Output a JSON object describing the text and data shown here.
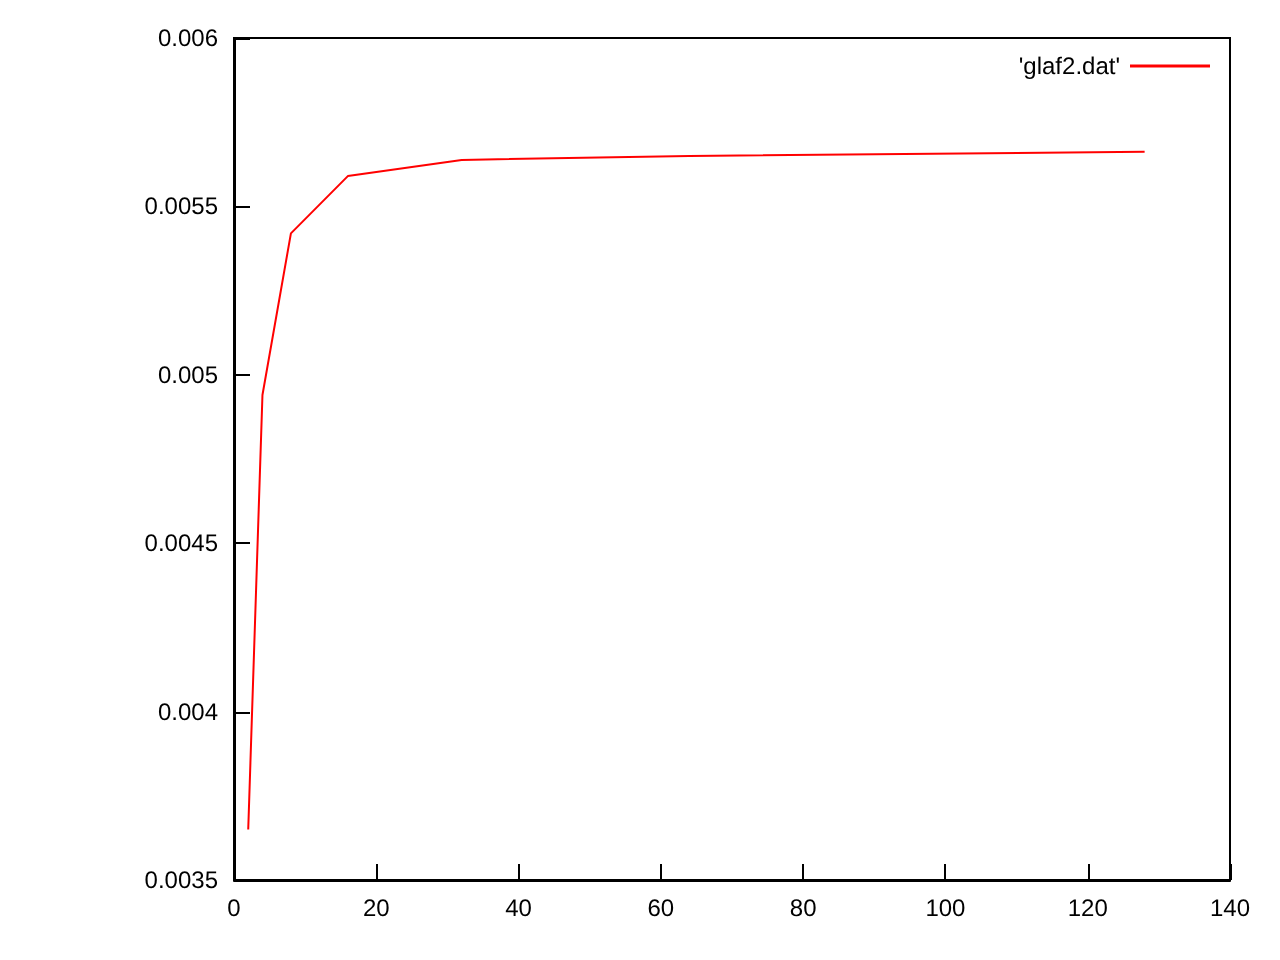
{
  "chart_data": {
    "type": "line",
    "x": [
      2,
      4,
      8,
      16,
      32,
      64,
      128
    ],
    "series": [
      {
        "name": "'glaf2.dat'",
        "color": "#ff0000",
        "values": [
          0.00365,
          0.00494,
          0.00542,
          0.00559,
          0.005638,
          0.00565,
          0.005662
        ]
      }
    ],
    "xlim": [
      0,
      140
    ],
    "xticks": [
      0,
      20,
      40,
      60,
      80,
      100,
      120,
      140
    ],
    "ylim": [
      0.0035,
      0.006
    ],
    "yticks": [
      0.0035,
      0.004,
      0.0045,
      0.005,
      0.0055,
      0.006
    ],
    "legend": "top right",
    "marker": "none",
    "line_style": "solid",
    "grid": false
  }
}
